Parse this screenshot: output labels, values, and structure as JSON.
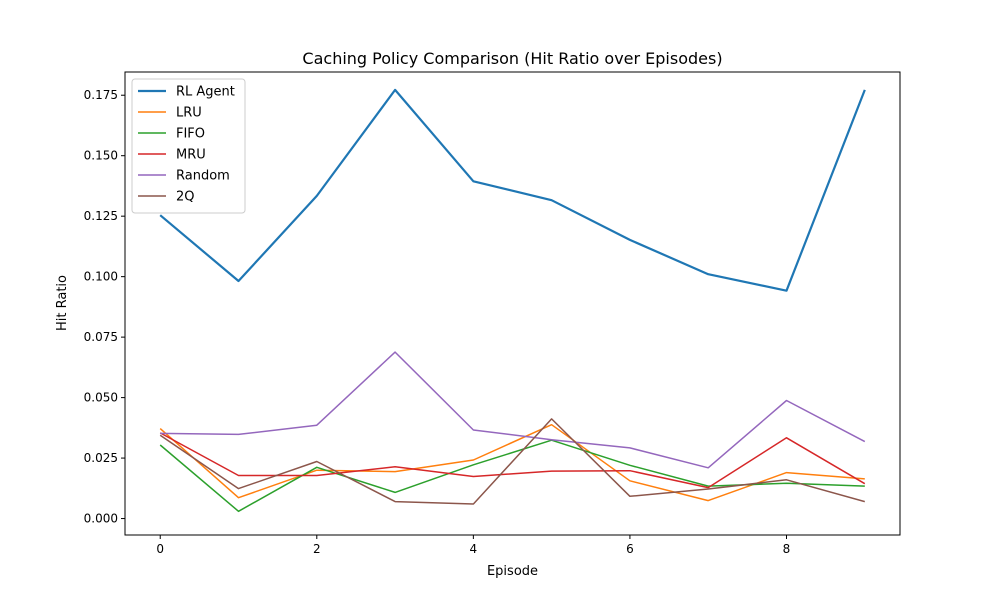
{
  "chart_data": {
    "type": "line",
    "title": "Caching Policy Comparison (Hit Ratio over Episodes)",
    "xlabel": "Episode",
    "ylabel": "Hit Ratio",
    "x": [
      0,
      1,
      2,
      3,
      4,
      5,
      6,
      7,
      8,
      9
    ],
    "xlim": [
      -0.45,
      9.45
    ],
    "ylim": [
      -0.0068,
      0.1846
    ],
    "xticks": [
      0,
      2,
      4,
      6,
      8
    ],
    "yticks": [
      0.0,
      0.025,
      0.05,
      0.075,
      0.1,
      0.125,
      0.15,
      0.175
    ],
    "ytick_labels": [
      "0.000",
      "0.025",
      "0.050",
      "0.075",
      "0.100",
      "0.125",
      "0.150",
      "0.175"
    ],
    "grid": false,
    "legend_position": "top-left",
    "series": [
      {
        "name": "RL Agent",
        "color": "#1f77b4",
        "emphasis": true,
        "values": [
          0.1254,
          0.0982,
          0.1334,
          0.1772,
          0.1394,
          0.1316,
          0.1152,
          0.101,
          0.0942,
          0.1772
        ]
      },
      {
        "name": "LRU",
        "color": "#ff7f0e",
        "values": [
          0.0372,
          0.0086,
          0.02,
          0.0194,
          0.0242,
          0.0388,
          0.0156,
          0.0074,
          0.019,
          0.0164
        ]
      },
      {
        "name": "FIFO",
        "color": "#2ca02c",
        "values": [
          0.0304,
          0.003,
          0.0212,
          0.0108,
          0.0222,
          0.0324,
          0.022,
          0.0134,
          0.0146,
          0.0134
        ]
      },
      {
        "name": "MRU",
        "color": "#d62728",
        "values": [
          0.0354,
          0.0178,
          0.0178,
          0.0214,
          0.0174,
          0.0196,
          0.0198,
          0.0128,
          0.0334,
          0.0144
        ]
      },
      {
        "name": "Random",
        "color": "#9467bd",
        "values": [
          0.0352,
          0.0348,
          0.0386,
          0.0688,
          0.0366,
          0.0326,
          0.0292,
          0.021,
          0.0488,
          0.0318
        ]
      },
      {
        "name": "2Q",
        "color": "#8c564b",
        "values": [
          0.0344,
          0.0124,
          0.0236,
          0.007,
          0.006,
          0.0412,
          0.0092,
          0.0122,
          0.016,
          0.007
        ]
      }
    ]
  }
}
